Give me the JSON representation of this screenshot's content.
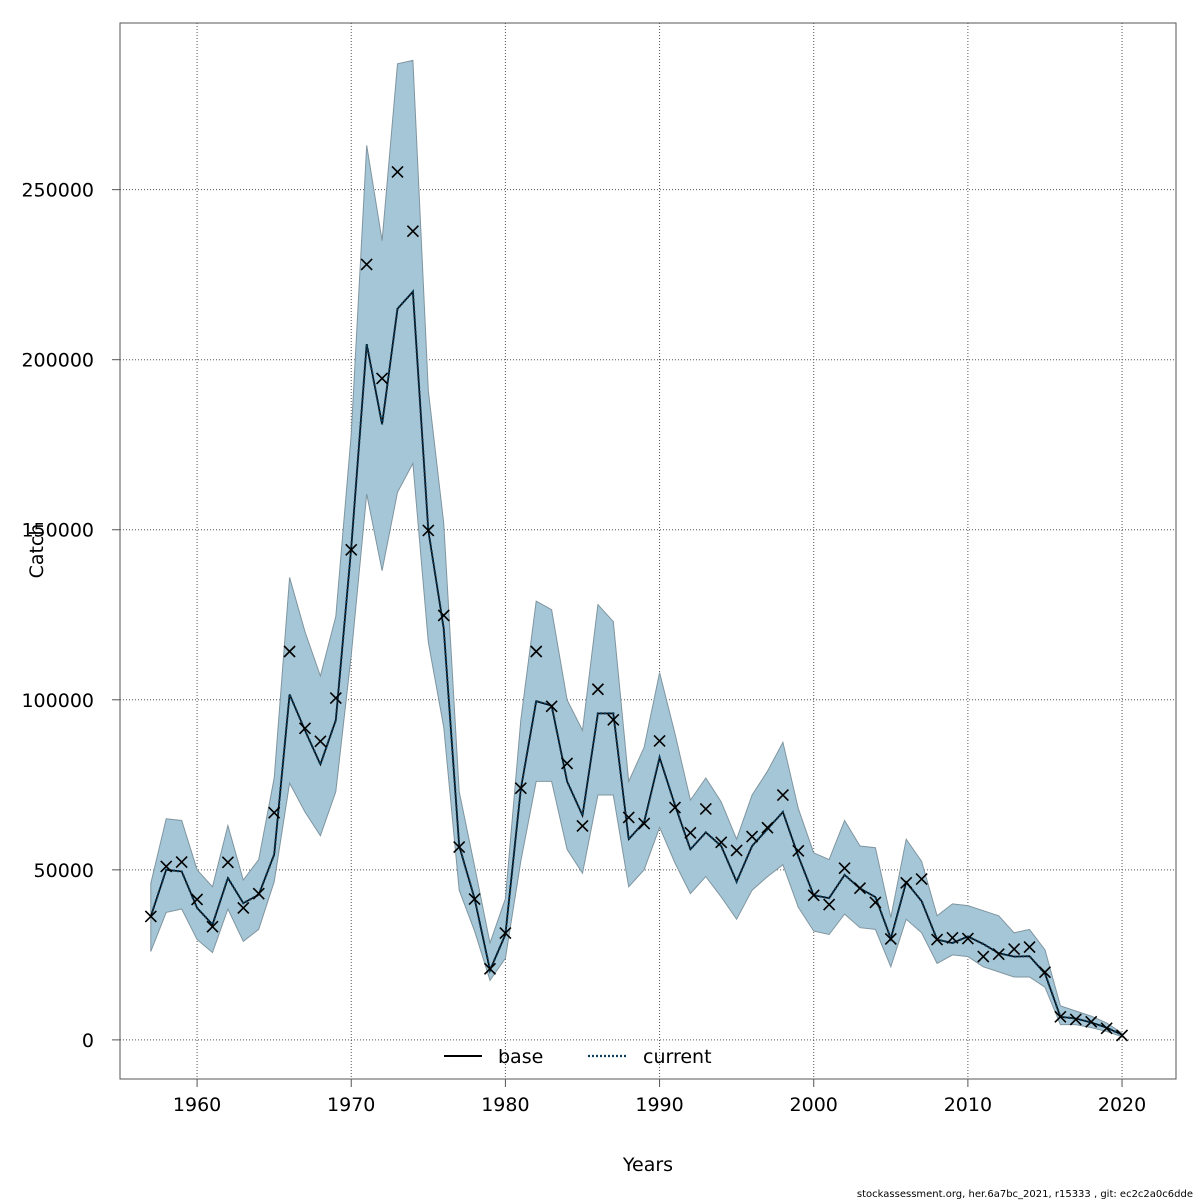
{
  "chart_data": {
    "type": "line",
    "xlabel": "Years",
    "ylabel": "Catch",
    "xlim": [
      1955,
      2023.5
    ],
    "ylim": [
      -11500,
      299000
    ],
    "xticks": [
      1960,
      1970,
      1980,
      1990,
      2000,
      2010,
      2020
    ],
    "yticks": [
      0,
      50000,
      100000,
      150000,
      200000,
      250000
    ],
    "ytick_labels": [
      "0",
      "50000",
      "100000",
      "150000",
      "200000",
      "250000"
    ],
    "grid": true,
    "legend_position": "bottom-center",
    "band_color": "#a5c6d6",
    "band_edge_color": "#7f95a0",
    "current_color": "#0b3d5c",
    "base_color": "#000000",
    "x": [
      1957,
      1958,
      1959,
      1960,
      1961,
      1962,
      1963,
      1964,
      1965,
      1966,
      1967,
      1968,
      1969,
      1970,
      1971,
      1972,
      1973,
      1974,
      1975,
      1976,
      1977,
      1978,
      1979,
      1980,
      1981,
      1982,
      1983,
      1984,
      1985,
      1986,
      1987,
      1988,
      1989,
      1990,
      1991,
      1992,
      1993,
      1994,
      1995,
      1996,
      1997,
      1998,
      1999,
      2000,
      2001,
      2002,
      2003,
      2004,
      2005,
      2006,
      2007,
      2008,
      2009,
      2010,
      2011,
      2012,
      2013,
      2014,
      2015,
      2016,
      2017,
      2018,
      2019,
      2020
    ],
    "series": [
      {
        "name": "base",
        "style": "solid",
        "values": [
          36300,
          50000,
          49500,
          38800,
          33900,
          47600,
          40200,
          42700,
          54500,
          101600,
          91000,
          81000,
          94000,
          144600,
          204600,
          181000,
          215000,
          220000,
          149800,
          121000,
          57000,
          41500,
          20500,
          31000,
          73700,
          99600,
          98300,
          76000,
          66000,
          96000,
          96000,
          59000,
          64000,
          83000,
          69000,
          56000,
          61000,
          57000,
          46500,
          57000,
          62000,
          67000,
          54000,
          42500,
          41700,
          48500,
          44500,
          42000,
          29800,
          46400,
          40800,
          29500,
          28500,
          30400,
          28200,
          25500,
          24500,
          24600,
          19500,
          6800,
          6300,
          5100,
          3600,
          1500
        ]
      },
      {
        "name": "current",
        "style": "dotted",
        "values": [
          36300,
          50000,
          49500,
          38800,
          33900,
          47600,
          40200,
          42700,
          54500,
          101600,
          91000,
          81000,
          94000,
          144600,
          204600,
          181000,
          215000,
          220000,
          149800,
          121000,
          57000,
          41500,
          20500,
          31000,
          73700,
          99600,
          98300,
          76000,
          66000,
          96000,
          96000,
          59000,
          64000,
          83000,
          69000,
          56000,
          61000,
          57000,
          46500,
          57000,
          62000,
          67000,
          54000,
          42500,
          41700,
          48500,
          44500,
          42000,
          29800,
          46400,
          40800,
          29500,
          28500,
          30400,
          28200,
          25500,
          24500,
          24600,
          19500,
          6800,
          6300,
          5100,
          3600,
          1500
        ]
      }
    ],
    "band_upper": [
      46000,
      65000,
      64500,
      50000,
      45000,
      63000,
      47000,
      53000,
      77000,
      136000,
      120000,
      107000,
      124500,
      178000,
      263000,
      235000,
      287000,
      288000,
      191000,
      152000,
      73000,
      51000,
      28500,
      41500,
      94000,
      129000,
      126500,
      100000,
      91000,
      128000,
      123000,
      76000,
      86000,
      108000,
      90000,
      70500,
      77000,
      70000,
      59000,
      72000,
      79000,
      87500,
      68000,
      55000,
      53000,
      64500,
      57000,
      56500,
      36000,
      59000,
      52500,
      36500,
      40000,
      39500,
      38000,
      36500,
      31500,
      32500,
      26500,
      10000,
      8500,
      7000,
      5000,
      2000
    ],
    "band_lower": [
      26000,
      37500,
      38500,
      29500,
      25700,
      38500,
      29000,
      32500,
      46500,
      75500,
      67000,
      60000,
      73000,
      113000,
      160500,
      138000,
      161000,
      169500,
      117000,
      92000,
      44000,
      32000,
      17500,
      24000,
      52500,
      76000,
      76000,
      56000,
      49000,
      72000,
      72000,
      45000,
      50000,
      62500,
      52000,
      43000,
      48000,
      42000,
      35500,
      44000,
      48000,
      51500,
      39000,
      32000,
      31000,
      37000,
      33000,
      32500,
      21500,
      35500,
      31500,
      22500,
      25000,
      24500,
      21500,
      20000,
      18500,
      18500,
      15500,
      4500,
      4500,
      3600,
      2500,
      900
    ],
    "observed": [
      36300,
      51000,
      52300,
      41300,
      33300,
      52200,
      38800,
      43000,
      66800,
      114200,
      91600,
      87800,
      100500,
      144100,
      228000,
      194500,
      255200,
      237800,
      149800,
      124800,
      56700,
      41400,
      20900,
      31400,
      74000,
      114200,
      98100,
      81300,
      62900,
      103100,
      94100,
      65400,
      63600,
      87900,
      68300,
      60900,
      67900,
      58100,
      55700,
      59800,
      62400,
      72000,
      55600,
      42500,
      39800,
      50500,
      44600,
      40400,
      29700,
      46200,
      47300,
      29500,
      30000,
      29800,
      24500,
      25200,
      26700,
      27300,
      19900,
      6800,
      6000,
      5300,
      3400,
      1300
    ]
  },
  "legend": {
    "items": [
      {
        "label": "base"
      },
      {
        "label": "current"
      }
    ]
  },
  "footer": {
    "text": "stockassessment.org, her.6a7bc_2021, r15333 , git: ec2c2a0c6dde"
  }
}
